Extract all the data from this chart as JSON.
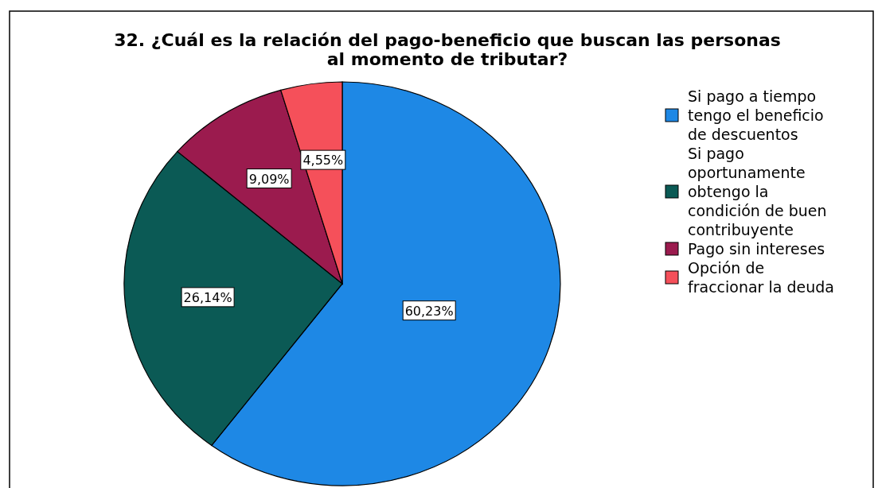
{
  "chart_data": {
    "type": "pie",
    "title": "32. ¿Cuál es la relación del pago-beneficio que buscan las personas al momento de tributar?",
    "categories": [
      "Si pago a tiempo tengo el beneficio de descuentos",
      "Si pago oportunamente obtengo la condición de buen contribuyente",
      "Pago sin intereses",
      "Opción de fraccionar la deuda"
    ],
    "values": [
      60.23,
      26.14,
      9.09,
      4.55
    ],
    "colors": [
      "#1e88e5",
      "#0b5a55",
      "#9b1b4e",
      "#f5505a"
    ],
    "value_labels": [
      "60,23%",
      "26,14%",
      "9,09%",
      "4,55%"
    ],
    "legend": "right"
  }
}
